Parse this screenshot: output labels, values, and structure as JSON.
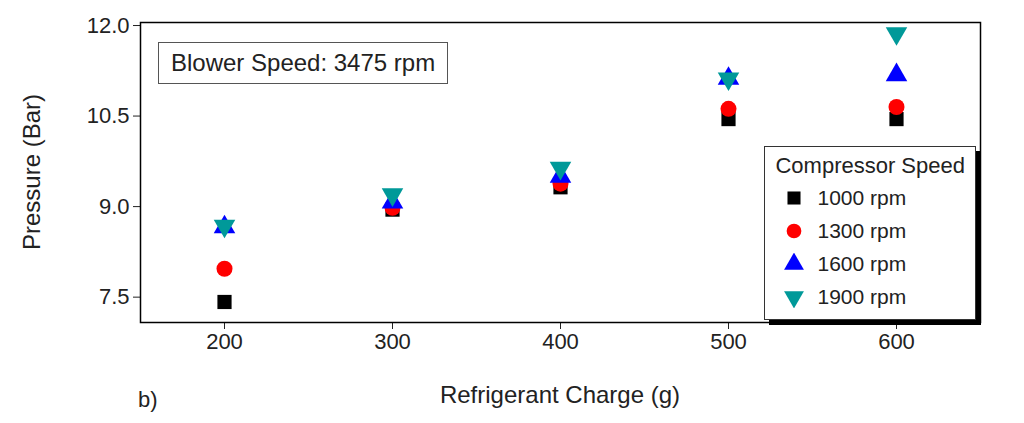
{
  "chart_data": {
    "type": "scatter",
    "annotations": [
      "Blower Speed: 3475 rpm",
      "b)"
    ],
    "x_label": "Refrigerant Charge (g)",
    "y_label": "Pressure (Bar)",
    "legend_title": "Compressor Speed",
    "legend": "lower right",
    "grid": false,
    "x": [
      200,
      300,
      400,
      500,
      600
    ],
    "xlim": [
      150,
      650
    ],
    "xticks": [
      200,
      300,
      400,
      500,
      600
    ],
    "ylim": [
      7.08,
      12.05
    ],
    "yticks": [
      7.5,
      {
        "value": 9,
        "label": "9.0"
      },
      10.5,
      {
        "value": 12,
        "label": "12.0"
      }
    ],
    "series": [
      {
        "name": "1000 rpm",
        "color": "#000000",
        "marker": "square",
        "values": [
          7.42,
          8.95,
          9.32,
          10.45,
          10.45
        ]
      },
      {
        "name": "1300 rpm",
        "color": "#ff0000",
        "marker": "circle",
        "values": [
          7.97,
          8.98,
          9.38,
          10.62,
          10.65
        ]
      },
      {
        "name": "1600 rpm",
        "color": "#0000ff",
        "marker": "triangle-up",
        "values": [
          8.66,
          9.07,
          9.5,
          11.12,
          11.18
        ]
      },
      {
        "name": "1900 rpm",
        "color": "#009999",
        "marker": "triangle-down",
        "values": [
          8.68,
          9.2,
          9.64,
          11.12,
          11.87
        ]
      }
    ]
  }
}
